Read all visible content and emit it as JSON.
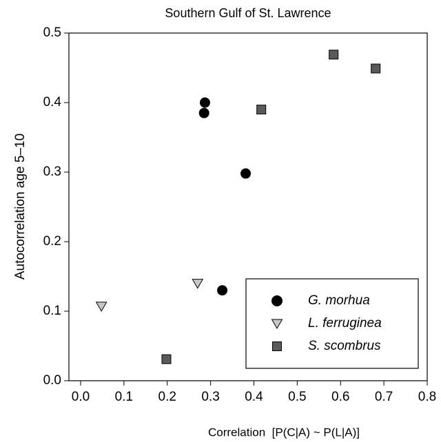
{
  "chart_data": {
    "type": "scatter",
    "title": "Southern Gulf of St. Lawrence",
    "x_label": "Correlation  [P(C|A) ~ P(L|A)]",
    "y_label": "Autocorrelation age 5–10",
    "xlim": [
      -0.027,
      0.8
    ],
    "ylim": [
      0,
      0.5
    ],
    "xticks": [
      {
        "value": 0,
        "label": "0.0"
      },
      0.1,
      0.2,
      0.3,
      0.4,
      0.5,
      0.6,
      0.7,
      0.8
    ],
    "yticks": [
      {
        "value": 0,
        "label": "0.0"
      },
      0.1,
      0.2,
      0.3,
      0.4,
      0.5
    ],
    "legend": "lower right",
    "series": [
      {
        "name": "G. morhua",
        "color": "#000000",
        "marker": "circle",
        "x": [
          0.287,
          0.285,
          0.381,
          0.327
        ],
        "values": [
          0.4,
          0.385,
          0.298,
          0.13
        ]
      },
      {
        "name": "L. ferruginea",
        "color": "#c8c8c8",
        "marker": "triangle-down",
        "x": [
          0.048,
          0.27
        ],
        "values": [
          0.107,
          0.14
        ]
      },
      {
        "name": "S. scombrus",
        "color": "#5a5a5a",
        "marker": "square",
        "x": [
          0.198,
          0.417,
          0.584,
          0.681
        ],
        "values": [
          0.031,
          0.39,
          0.469,
          0.449
        ]
      }
    ]
  }
}
